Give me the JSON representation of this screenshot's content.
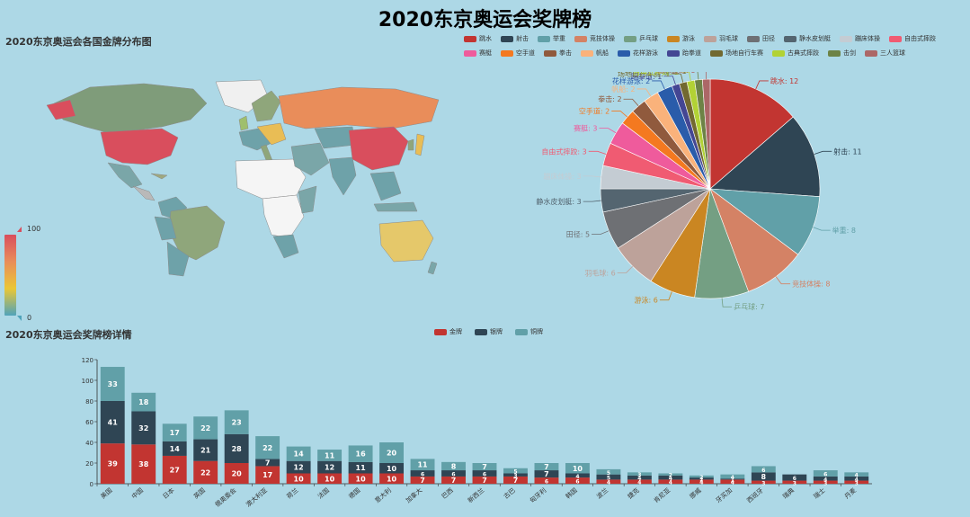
{
  "title": "2020东京奥运会奖牌榜",
  "map": {
    "subtitle": "2020东京奥运会各国金牌分布图",
    "visual_map": {
      "max_label": "100",
      "min_label": "0",
      "colors": [
        "#d94e5d",
        "#e98d5a",
        "#eac736",
        "#50a3ba"
      ]
    }
  },
  "pie": {
    "legend": [
      {
        "name": "跳水",
        "color": "#c23531"
      },
      {
        "name": "射击",
        "color": "#2f4554"
      },
      {
        "name": "举重",
        "color": "#61a0a8"
      },
      {
        "name": "竞技体操",
        "color": "#d48265"
      },
      {
        "name": "乒乓球",
        "color": "#749f83"
      },
      {
        "name": "游泳",
        "color": "#ca8622"
      },
      {
        "name": "羽毛球",
        "color": "#bda29a"
      },
      {
        "name": "田径",
        "color": "#6e7074"
      },
      {
        "name": "静水皮划艇",
        "color": "#546570"
      },
      {
        "name": "蹦床体操",
        "color": "#c4ccd3"
      },
      {
        "name": "自由式摔跤",
        "color": "#f05b72"
      },
      {
        "name": "赛艇",
        "color": "#ef5b9c"
      },
      {
        "name": "空手道",
        "color": "#f47920"
      },
      {
        "name": "拳击",
        "color": "#905a3d"
      },
      {
        "name": "帆船",
        "color": "#fab27b"
      },
      {
        "name": "花样游泳",
        "color": "#2a5caa"
      },
      {
        "name": "跆拳道",
        "color": "#444693"
      },
      {
        "name": "场地自行车赛",
        "color": "#726930"
      },
      {
        "name": "古典式摔跤",
        "color": "#b2d235"
      },
      {
        "name": "击剑",
        "color": "#6d8346"
      },
      {
        "name": "三人篮球",
        "color": "#ac6767"
      }
    ]
  },
  "bar": {
    "subtitle": "2020东京奥运会奖牌榜详情",
    "legend": [
      {
        "name": "金牌",
        "color": "#c23531"
      },
      {
        "name": "银牌",
        "color": "#2f4554"
      },
      {
        "name": "铜牌",
        "color": "#61a0a8"
      }
    ]
  },
  "chart_data": [
    {
      "type": "pie",
      "title": "",
      "slices": [
        {
          "name": "跳水",
          "value": 12
        },
        {
          "name": "射击",
          "value": 11
        },
        {
          "name": "举重",
          "value": 8
        },
        {
          "name": "竞技体操",
          "value": 8
        },
        {
          "name": "乒乓球",
          "value": 7
        },
        {
          "name": "游泳",
          "value": 6
        },
        {
          "name": "羽毛球",
          "value": 6
        },
        {
          "name": "田径",
          "value": 5
        },
        {
          "name": "静水皮划艇",
          "value": 3
        },
        {
          "name": "蹦床体操",
          "value": 3
        },
        {
          "name": "自由式摔跤",
          "value": 3
        },
        {
          "name": "赛艇",
          "value": 3
        },
        {
          "name": "空手道",
          "value": 2
        },
        {
          "name": "拳击",
          "value": 2
        },
        {
          "name": "帆船",
          "value": 2
        },
        {
          "name": "花样游泳",
          "value": 2
        },
        {
          "name": "跆拳道",
          "value": 1
        },
        {
          "name": "场地自行车赛",
          "value": 1
        },
        {
          "name": "古典式摔跤",
          "value": 1
        },
        {
          "name": "击剑",
          "value": 1
        },
        {
          "name": "三人篮球",
          "value": 1
        }
      ]
    },
    {
      "type": "bar",
      "stacked": true,
      "categories": [
        "美国",
        "中国",
        "日本",
        "英国",
        "俄奥委会",
        "澳大利亚",
        "荷兰",
        "法国",
        "德国",
        "意大利",
        "加拿大",
        "巴西",
        "新西兰",
        "古巴",
        "匈牙利",
        "韩国",
        "波兰",
        "捷克",
        "肯尼亚",
        "挪威",
        "牙买加",
        "西班牙",
        "瑞典",
        "瑞士",
        "丹麦"
      ],
      "series": [
        {
          "name": "金牌",
          "values": [
            39,
            38,
            27,
            22,
            20,
            17,
            10,
            10,
            10,
            10,
            7,
            7,
            7,
            7,
            6,
            6,
            4,
            4,
            4,
            4,
            4,
            3,
            3,
            3,
            3
          ]
        },
        {
          "name": "银牌",
          "values": [
            41,
            32,
            14,
            21,
            28,
            7,
            12,
            12,
            11,
            10,
            6,
            6,
            6,
            3,
            7,
            4,
            5,
            4,
            4,
            2,
            1,
            8,
            6,
            4,
            4
          ]
        },
        {
          "name": "铜牌",
          "values": [
            33,
            18,
            17,
            22,
            23,
            22,
            14,
            11,
            16,
            20,
            11,
            8,
            7,
            5,
            7,
            10,
            5,
            3,
            2,
            2,
            4,
            6,
            0,
            6,
            4
          ]
        }
      ],
      "ylim": [
        0,
        120
      ],
      "yticks": [
        0,
        20,
        40,
        60,
        80,
        100,
        120
      ],
      "xlabel": "",
      "ylabel": ""
    }
  ]
}
